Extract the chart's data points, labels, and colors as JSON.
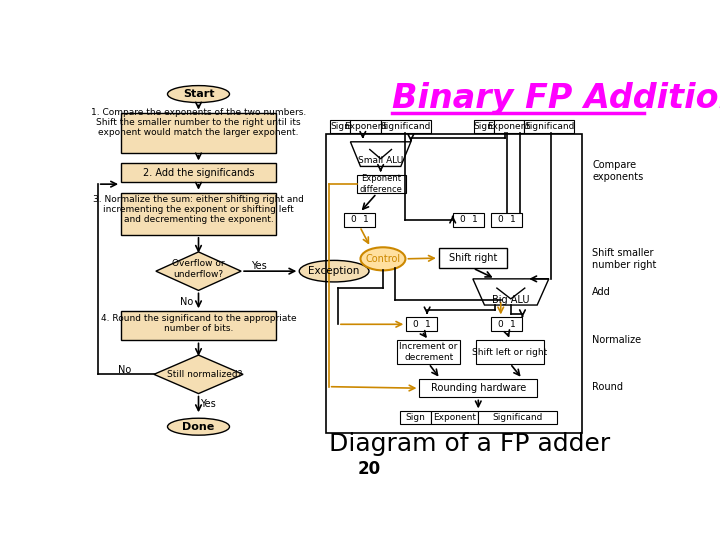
{
  "title": "Binary FP Addition",
  "title_color": "#FF00FF",
  "subtitle": "Diagram of a FP adder",
  "page_number": "20",
  "bg_color": "#FFFFFF",
  "flowchart_box_color": "#F5DEB3",
  "flowchart_box_edge": "#8B7355",
  "orange": "#CC8800",
  "right_labels": [
    "Compare\nexponents",
    "Shift smaller\nnumber right",
    "Add",
    "Normalize",
    "Round"
  ]
}
